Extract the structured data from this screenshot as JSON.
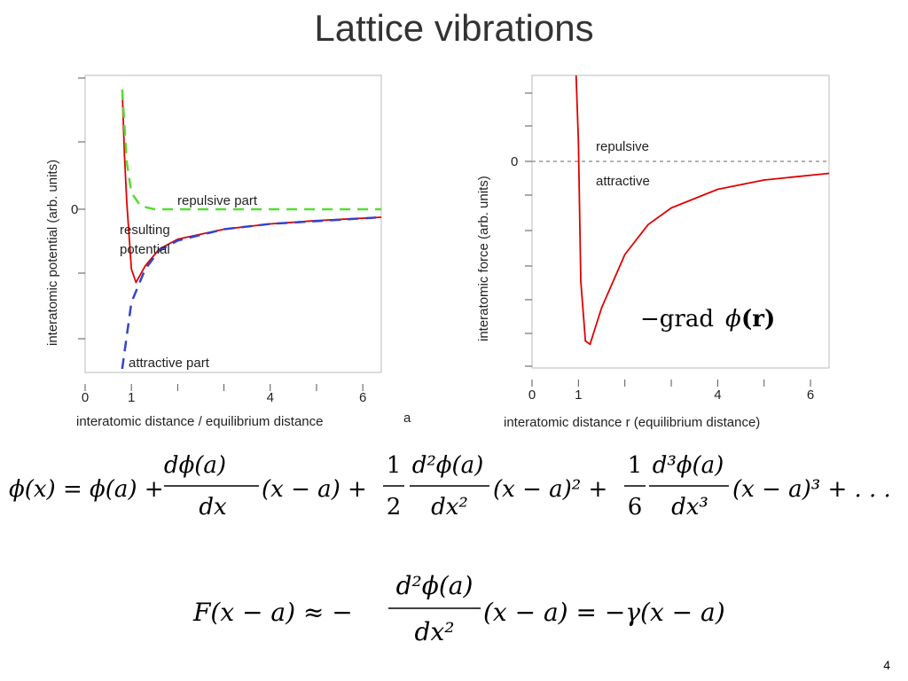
{
  "slide": {
    "title": "Lattice vibrations",
    "page_number": "4"
  },
  "chart_data": [
    {
      "type": "line",
      "xlabel": "interatomic distance / equilibrium distance",
      "xlabel_suffix": "a",
      "ylabel": "interatomic potential (arb. units)",
      "xlim": [
        0,
        6.4
      ],
      "x_ticks": [
        "0",
        "1",
        "4",
        "6"
      ],
      "y_ticks": [
        "0"
      ],
      "grid": false,
      "series": [
        {
          "name": "resulting potential",
          "color": "#e00000",
          "style": "solid",
          "x": [
            0.8,
            0.85,
            0.9,
            1.0,
            1.1,
            1.3,
            1.6,
            2.0,
            3.0,
            4.0,
            5.0,
            6.4
          ],
          "y": [
            1.8,
            0.8,
            0.1,
            -0.9,
            -1.1,
            -0.85,
            -0.6,
            -0.45,
            -0.3,
            -0.22,
            -0.17,
            -0.12
          ]
        },
        {
          "name": "repulsive part",
          "color": "#55dd33",
          "style": "dashed",
          "x": [
            0.8,
            0.9,
            1.0,
            1.2,
            1.5,
            2.0,
            6.4
          ],
          "y": [
            1.8,
            0.7,
            0.25,
            0.05,
            0.0,
            0.0,
            0.0
          ]
        },
        {
          "name": "attractive part",
          "color": "#3344cc",
          "style": "dashed",
          "x": [
            0.8,
            1.0,
            1.3,
            1.6,
            2.0,
            3.0,
            4.0,
            6.4
          ],
          "y": [
            -2.4,
            -1.4,
            -0.9,
            -0.62,
            -0.47,
            -0.3,
            -0.22,
            -0.12
          ]
        }
      ],
      "annotations": [
        "repulsive part",
        "resulting",
        "potential",
        "attractive part"
      ]
    },
    {
      "type": "line",
      "xlabel": "interatomic distance r (equilibrium distance)",
      "ylabel": "interatomic force (arb. units)",
      "xlim": [
        0,
        6.4
      ],
      "x_ticks": [
        "0",
        "1",
        "4",
        "6"
      ],
      "y_ticks": [
        "0"
      ],
      "grid": false,
      "series": [
        {
          "name": "force",
          "color": "#e00000",
          "style": "solid",
          "x": [
            0.95,
            1.0,
            1.05,
            1.15,
            1.25,
            1.5,
            2.0,
            2.5,
            3.0,
            4.0,
            5.0,
            6.4
          ],
          "y": [
            2.4,
            0.3,
            -1.8,
            -2.7,
            -2.75,
            -2.2,
            -1.4,
            -0.95,
            -0.7,
            -0.42,
            -0.28,
            -0.18
          ]
        }
      ],
      "zero_line": {
        "color": "#999999",
        "style": "dotted"
      },
      "annotations": [
        "repulsive",
        "attractive"
      ]
    }
  ],
  "equations": {
    "grad_label": "−grad",
    "grad_phi": "ϕ",
    "grad_r": "(r)",
    "taylor": {
      "lhs": "ϕ(x) = ϕ(a) +",
      "frac1_num": "dϕ(a)",
      "frac1_den": "dx",
      "term1": "(x − a) +",
      "half_num": "1",
      "half_den": "2",
      "frac2_num": "d²ϕ(a)",
      "frac2_den": "dx²",
      "term2": "(x − a)² +",
      "sixth_num": "1",
      "sixth_den": "6",
      "frac3_num": "d³ϕ(a)",
      "frac3_den": "dx³",
      "term3": "(x − a)³ + . . ."
    },
    "force": {
      "lhs": "F(x − a) ≈ −",
      "frac_num": "d²ϕ(a)",
      "frac_den": "dx²",
      "rhs": "(x − a) = −γ(x − a)"
    }
  }
}
